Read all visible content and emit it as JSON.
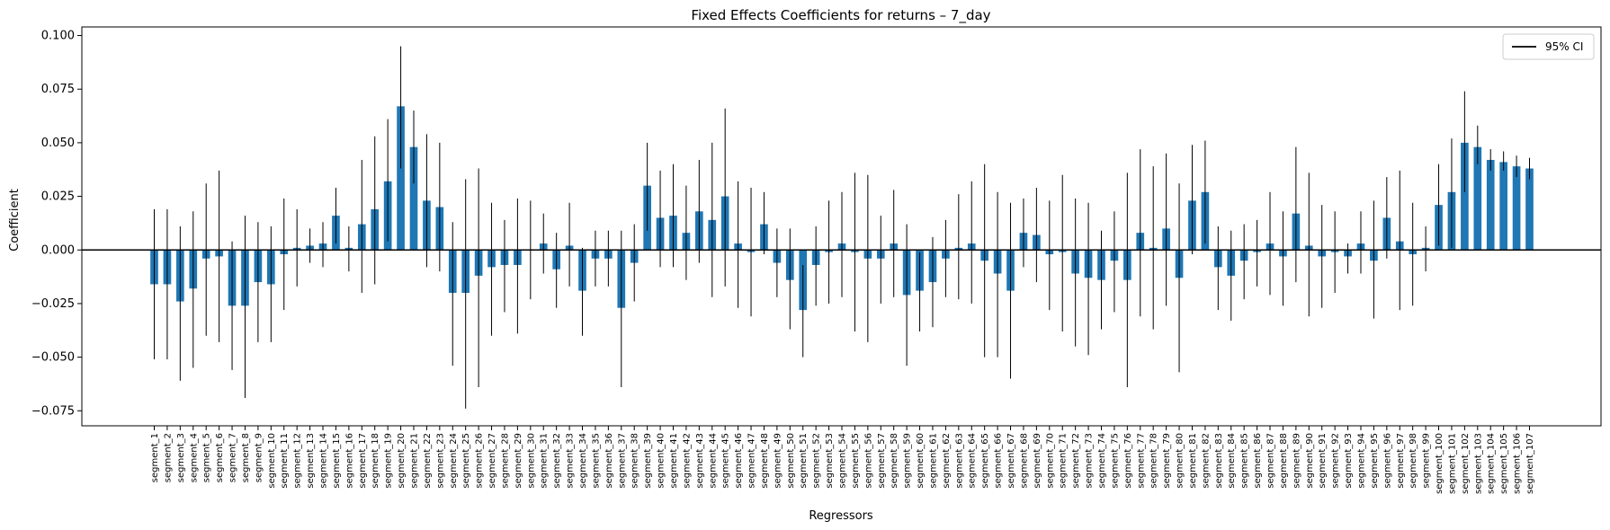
{
  "chart_data": {
    "type": "bar",
    "title": "Fixed Effects Coefficients for returns – 7_day",
    "xlabel": "Regressors",
    "ylabel": "Coefficient",
    "ylim": [
      -0.082,
      0.104
    ],
    "yticks": [
      -0.075,
      -0.05,
      -0.025,
      0.0,
      0.025,
      0.05,
      0.075,
      0.1
    ],
    "ytick_labels": [
      "−0.075",
      "−0.050",
      "−0.025",
      "0.000",
      "0.025",
      "0.050",
      "0.075",
      "0.100"
    ],
    "legend": {
      "label": "95% CI",
      "position": "top-right"
    },
    "grid": false,
    "colors": {
      "bar": "#1f77b4",
      "error": "#000000",
      "zero_line": "#000000"
    },
    "categories": [
      "segment_1",
      "segment_2",
      "segment_3",
      "segment_4",
      "segment_5",
      "segment_6",
      "segment_7",
      "segment_8",
      "segment_9",
      "segment_10",
      "segment_11",
      "segment_12",
      "segment_13",
      "segment_14",
      "segment_15",
      "segment_16",
      "segment_17",
      "segment_18",
      "segment_19",
      "segment_20",
      "segment_21",
      "segment_22",
      "segment_23",
      "segment_24",
      "segment_25",
      "segment_26",
      "segment_27",
      "segment_28",
      "segment_29",
      "segment_30",
      "segment_31",
      "segment_32",
      "segment_33",
      "segment_34",
      "segment_35",
      "segment_36",
      "segment_37",
      "segment_38",
      "segment_39",
      "segment_40",
      "segment_41",
      "segment_42",
      "segment_43",
      "segment_44",
      "segment_45",
      "segment_46",
      "segment_47",
      "segment_48",
      "segment_49",
      "segment_50",
      "segment_51",
      "segment_52",
      "segment_53",
      "segment_54",
      "segment_55",
      "segment_56",
      "segment_57",
      "segment_58",
      "segment_59",
      "segment_60",
      "segment_61",
      "segment_62",
      "segment_63",
      "segment_64",
      "segment_65",
      "segment_66",
      "segment_67",
      "segment_68",
      "segment_69",
      "segment_70",
      "segment_71",
      "segment_72",
      "segment_73",
      "segment_74",
      "segment_75",
      "segment_76",
      "segment_77",
      "segment_78",
      "segment_79",
      "segment_80",
      "segment_81",
      "segment_82",
      "segment_83",
      "segment_84",
      "segment_85",
      "segment_86",
      "segment_87",
      "segment_88",
      "segment_89",
      "segment_90",
      "segment_91",
      "segment_92",
      "segment_93",
      "segment_94",
      "segment_95",
      "segment_96",
      "segment_97",
      "segment_98",
      "segment_99",
      "segment_100",
      "segment_101",
      "segment_102",
      "segment_103",
      "segment_104",
      "segment_105",
      "segment_106",
      "segment_107"
    ],
    "values": [
      -0.016,
      -0.016,
      -0.024,
      -0.018,
      -0.004,
      -0.003,
      -0.026,
      -0.026,
      -0.015,
      -0.016,
      -0.002,
      0.001,
      0.002,
      0.003,
      0.016,
      0.001,
      0.012,
      0.019,
      0.032,
      0.067,
      0.048,
      0.023,
      0.02,
      -0.02,
      -0.02,
      -0.012,
      -0.008,
      -0.007,
      -0.007,
      0.0,
      0.003,
      -0.009,
      0.002,
      -0.019,
      -0.004,
      -0.004,
      -0.027,
      -0.006,
      0.03,
      0.015,
      0.016,
      0.008,
      0.018,
      0.014,
      0.025,
      0.003,
      -0.001,
      0.012,
      -0.006,
      -0.014,
      -0.028,
      -0.007,
      -0.001,
      0.003,
      -0.001,
      -0.004,
      -0.004,
      0.003,
      -0.021,
      -0.019,
      -0.015,
      -0.004,
      0.001,
      0.003,
      -0.005,
      -0.011,
      -0.019,
      0.008,
      0.007,
      -0.002,
      -0.001,
      -0.011,
      -0.013,
      -0.014,
      -0.005,
      -0.014,
      0.008,
      0.001,
      0.01,
      -0.013,
      0.023,
      0.027,
      -0.008,
      -0.012,
      -0.005,
      -0.001,
      0.003,
      -0.003,
      0.017,
      0.002,
      -0.003,
      -0.001,
      -0.003,
      0.003,
      -0.005,
      0.015,
      0.004,
      -0.002,
      0.001,
      0.021,
      0.027,
      0.05,
      0.048,
      0.042,
      0.041,
      0.039,
      0.038
    ],
    "ci_lower": [
      -0.051,
      -0.051,
      -0.061,
      -0.055,
      -0.04,
      -0.043,
      -0.056,
      -0.069,
      -0.043,
      -0.043,
      -0.028,
      -0.017,
      -0.006,
      -0.008,
      0.003,
      -0.01,
      -0.02,
      -0.016,
      0.004,
      0.038,
      0.031,
      -0.008,
      -0.01,
      -0.054,
      -0.074,
      -0.064,
      -0.04,
      -0.029,
      -0.039,
      -0.023,
      -0.011,
      -0.027,
      -0.017,
      -0.04,
      -0.017,
      -0.017,
      -0.064,
      -0.024,
      0.009,
      -0.008,
      -0.008,
      -0.014,
      -0.006,
      -0.022,
      -0.017,
      -0.027,
      -0.031,
      -0.002,
      -0.022,
      -0.037,
      -0.05,
      -0.026,
      -0.025,
      -0.022,
      -0.038,
      -0.043,
      -0.025,
      -0.022,
      -0.054,
      -0.038,
      -0.036,
      -0.022,
      -0.023,
      -0.025,
      -0.05,
      -0.05,
      -0.06,
      -0.008,
      -0.015,
      -0.028,
      -0.038,
      -0.045,
      -0.049,
      -0.037,
      -0.029,
      -0.064,
      -0.031,
      -0.037,
      -0.026,
      -0.057,
      -0.002,
      0.003,
      -0.028,
      -0.033,
      -0.023,
      -0.017,
      -0.021,
      -0.026,
      -0.015,
      -0.031,
      -0.027,
      -0.02,
      -0.011,
      -0.011,
      -0.032,
      -0.004,
      -0.028,
      -0.026,
      -0.01,
      0.002,
      0.001,
      0.027,
      0.04,
      0.037,
      0.037,
      0.034,
      0.033
    ],
    "ci_upper": [
      0.019,
      0.019,
      0.011,
      0.018,
      0.031,
      0.037,
      0.004,
      0.016,
      0.013,
      0.011,
      0.024,
      0.019,
      0.01,
      0.013,
      0.029,
      0.011,
      0.042,
      0.053,
      0.061,
      0.095,
      0.065,
      0.054,
      0.05,
      0.013,
      0.033,
      0.038,
      0.022,
      0.014,
      0.024,
      0.023,
      0.017,
      0.008,
      0.022,
      0.001,
      0.009,
      0.009,
      0.009,
      0.012,
      0.05,
      0.037,
      0.04,
      0.03,
      0.042,
      0.05,
      0.066,
      0.032,
      0.029,
      0.027,
      0.01,
      0.01,
      -0.007,
      0.011,
      0.023,
      0.027,
      0.036,
      0.035,
      0.016,
      0.028,
      0.012,
      -0.001,
      0.006,
      0.014,
      0.026,
      0.032,
      0.04,
      0.027,
      0.022,
      0.024,
      0.029,
      0.023,
      0.035,
      0.024,
      0.022,
      0.009,
      0.018,
      0.036,
      0.047,
      0.039,
      0.045,
      0.031,
      0.049,
      0.051,
      0.011,
      0.009,
      0.012,
      0.014,
      0.027,
      0.018,
      0.048,
      0.036,
      0.021,
      0.018,
      0.003,
      0.018,
      0.023,
      0.034,
      0.037,
      0.022,
      0.011,
      0.04,
      0.052,
      0.074,
      0.058,
      0.047,
      0.046,
      0.044,
      0.043
    ]
  }
}
